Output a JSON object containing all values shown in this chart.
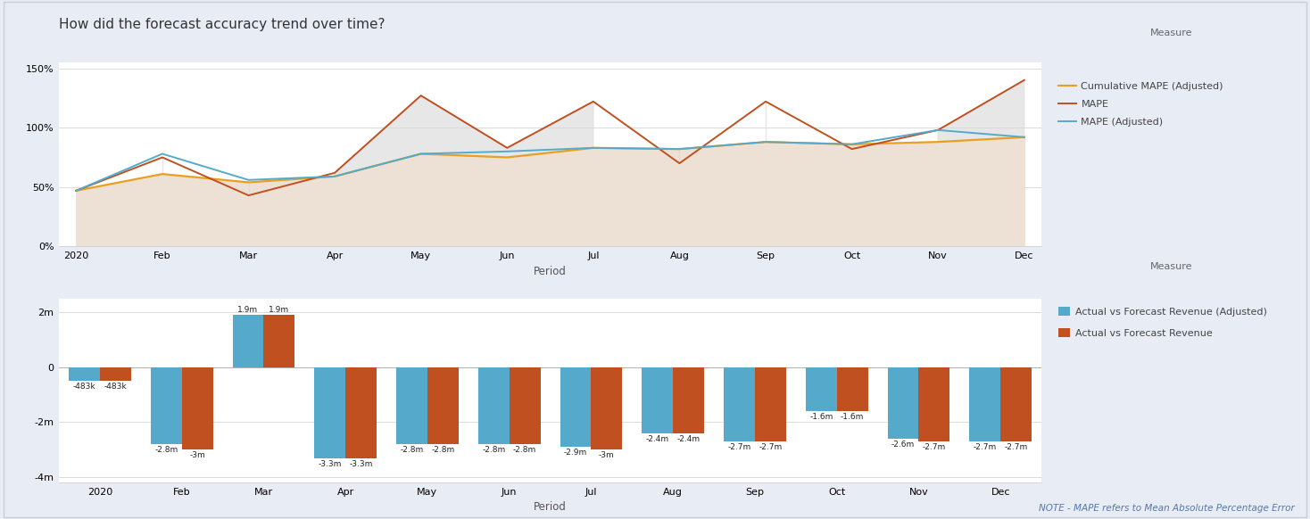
{
  "title": "How did the forecast accuracy trend over time?",
  "note": "NOTE - MAPE refers to Mean Absolute Percentage Error",
  "top_chart": {
    "xlabel": "Period",
    "x_labels": [
      "2020",
      "Feb",
      "Mar",
      "Apr",
      "May",
      "Jun",
      "Jul",
      "Aug",
      "Sep",
      "Oct",
      "Nov",
      "Dec"
    ],
    "ylim": [
      0,
      155
    ],
    "yticks": [
      0,
      50,
      100,
      150
    ],
    "ytick_labels": [
      "0%",
      "50%",
      "100%",
      "150%"
    ],
    "cumulative_mape_adj": [
      47,
      61,
      54,
      59,
      78,
      75,
      83,
      82,
      88,
      86,
      88,
      92
    ],
    "mape": [
      47,
      75,
      43,
      62,
      127,
      83,
      122,
      70,
      122,
      82,
      98,
      140
    ],
    "mape_adj": [
      47,
      78,
      56,
      59,
      78,
      80,
      83,
      82,
      88,
      86,
      98,
      92
    ],
    "cumulative_color": "#E8A020",
    "mape_color": "#C05020",
    "mape_adj_color": "#55AACC",
    "fill_color_bottom": "#EDE0D4",
    "fill_color_top": "#D8D8D8",
    "legend_label_cumulative": "Cumulative MAPE (Adjusted)",
    "legend_label_mape": "MAPE",
    "legend_label_mape_adj": "MAPE (Adjusted)"
  },
  "bottom_chart": {
    "xlabel": "Period",
    "x_labels": [
      "2020",
      "Feb",
      "Mar",
      "Apr",
      "May",
      "Jun",
      "Jul",
      "Aug",
      "Sep",
      "Oct",
      "Nov",
      "Dec"
    ],
    "ylim": [
      -4200000,
      2500000
    ],
    "yticks": [
      -4000000,
      -2000000,
      0,
      2000000
    ],
    "ytick_labels": [
      "-4m",
      "-2m",
      "0",
      "2m"
    ],
    "avf_revenue_adj": [
      -483000,
      -2800000,
      1900000,
      -3300000,
      -2800000,
      -2800000,
      -2900000,
      -2400000,
      -2700000,
      -1600000,
      -2600000,
      -2700000
    ],
    "avf_revenue": [
      -483000,
      -3000000,
      1900000,
      -3300000,
      -2800000,
      -2800000,
      -3000000,
      -2400000,
      -2700000,
      -1600000,
      -2700000,
      -2700000
    ],
    "bar_color_adj": "#55AACC",
    "bar_color": "#C05020",
    "bar_width": 0.38,
    "legend_label_adj": "Actual vs Forecast Revenue (Adjusted)",
    "legend_label": "Actual vs Forecast Revenue",
    "bar_labels_adj": [
      "-483k",
      "-2.8m",
      "1.9m",
      "-3.3m",
      "-2.8m",
      "-2.8m",
      "-2.9m",
      "-2.4m",
      "-2.7m",
      "-1.6m",
      "-2.6m",
      "-2.7m"
    ],
    "bar_labels": [
      "-483k",
      "-3m",
      "1.9m",
      "-3.3m",
      "-2.8m",
      "-2.8m",
      "-3m",
      "-2.4m",
      "-2.7m",
      "-1.6m",
      "-2.7m",
      "-2.7m"
    ]
  },
  "bg_color": "#E8ECF5",
  "panel_color": "#FFFFFF",
  "plot_area_color": "#F8F8F8",
  "legend_title": "Measure",
  "outer_border_color": "#C8CED8"
}
